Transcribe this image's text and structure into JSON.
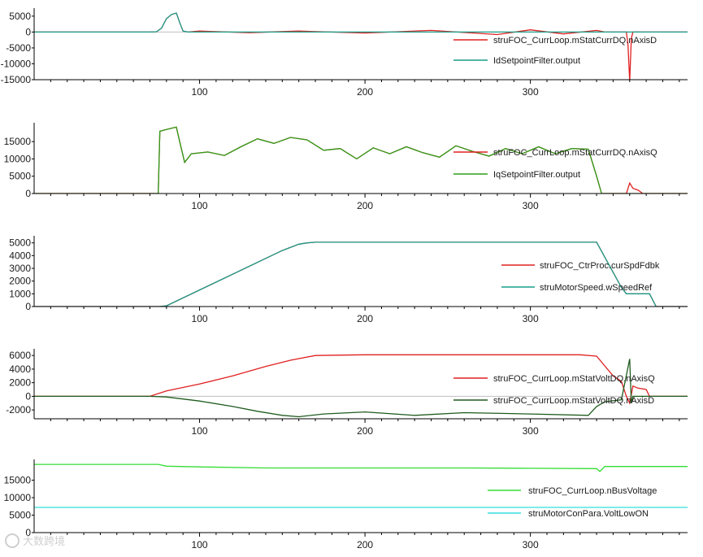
{
  "watermark": {
    "text": "大数跨境",
    "color": "#cfcfcf"
  },
  "colors": {
    "zero_line": "#bfbfbf",
    "axis": "#000000"
  },
  "chart_data": [
    {
      "type": "line",
      "x_range": [
        0,
        395
      ],
      "x_ticks": [
        100,
        200,
        300
      ],
      "ylim": [
        -15000,
        6500
      ],
      "y_ticks": [
        5000,
        0,
        -5000,
        -10000,
        -15000
      ],
      "y_tick_labels": [
        "5000",
        "0",
        "-5000",
        "-10000",
        "-15000"
      ],
      "grid": false,
      "legend_position": "right",
      "series": [
        {
          "name": "struFOC_CurrLoop.mStatCurrDQ.nAxisD",
          "color": "#e02020",
          "points": [
            [
              0,
              0
            ],
            [
              70,
              0
            ],
            [
              74,
              100
            ],
            [
              77,
              1200
            ],
            [
              80,
              4200
            ],
            [
              83,
              5500
            ],
            [
              86,
              6000
            ],
            [
              88,
              3000
            ],
            [
              90,
              300
            ],
            [
              93,
              0
            ],
            [
              100,
              300
            ],
            [
              130,
              -200
            ],
            [
              160,
              300
            ],
            [
              200,
              -300
            ],
            [
              240,
              500
            ],
            [
              280,
              -800
            ],
            [
              300,
              700
            ],
            [
              320,
              -600
            ],
            [
              340,
              500
            ],
            [
              345,
              0
            ],
            [
              358,
              0
            ],
            [
              359,
              -4000
            ],
            [
              360,
              -15500
            ],
            [
              361,
              -2000
            ],
            [
              362,
              0
            ],
            [
              395,
              0
            ]
          ]
        },
        {
          "name": "IdSetpointFilter.output",
          "color": "#1a9e8a",
          "points": [
            [
              0,
              0
            ],
            [
              70,
              0
            ],
            [
              74,
              100
            ],
            [
              77,
              1200
            ],
            [
              80,
              4200
            ],
            [
              83,
              5500
            ],
            [
              86,
              6000
            ],
            [
              88,
              3000
            ],
            [
              90,
              300
            ],
            [
              93,
              0
            ],
            [
              395,
              0
            ]
          ]
        }
      ]
    },
    {
      "type": "line",
      "x_range": [
        0,
        395
      ],
      "x_ticks": [
        100,
        200,
        300
      ],
      "ylim": [
        0,
        19500
      ],
      "y_ticks": [
        15000,
        10000,
        5000,
        0
      ],
      "y_tick_labels": [
        "15000",
        "10000",
        "5000",
        "0"
      ],
      "grid": false,
      "legend_position": "right",
      "series": [
        {
          "name": "struFOC_CurrLoop.mStatCurrDQ.nAxisQ",
          "color": "#e02020",
          "points": [
            [
              0,
              0
            ],
            [
              75,
              0
            ],
            [
              76,
              18000
            ],
            [
              80,
              18500
            ],
            [
              86,
              19200
            ],
            [
              88,
              15000
            ],
            [
              91,
              9000
            ],
            [
              95,
              11500
            ],
            [
              105,
              12000
            ],
            [
              115,
              11000
            ],
            [
              125,
              13500
            ],
            [
              135,
              15800
            ],
            [
              145,
              14500
            ],
            [
              155,
              16200
            ],
            [
              165,
              15500
            ],
            [
              175,
              12500
            ],
            [
              185,
              13000
            ],
            [
              195,
              10000
            ],
            [
              205,
              13200
            ],
            [
              215,
              11500
            ],
            [
              225,
              13500
            ],
            [
              235,
              11800
            ],
            [
              245,
              10500
            ],
            [
              255,
              13800
            ],
            [
              265,
              12200
            ],
            [
              275,
              10800
            ],
            [
              285,
              13000
            ],
            [
              295,
              11500
            ],
            [
              305,
              13500
            ],
            [
              315,
              11500
            ],
            [
              325,
              13000
            ],
            [
              335,
              12800
            ],
            [
              340,
              5000
            ],
            [
              343,
              0
            ],
            [
              358,
              0
            ],
            [
              360,
              3000
            ],
            [
              362,
              1500
            ],
            [
              365,
              1000
            ],
            [
              368,
              0
            ],
            [
              395,
              0
            ]
          ]
        },
        {
          "name": "IqSetpointFilter.output",
          "color": "#2e9e1a",
          "points": [
            [
              0,
              0
            ],
            [
              75,
              0
            ],
            [
              76,
              18000
            ],
            [
              80,
              18500
            ],
            [
              86,
              19200
            ],
            [
              88,
              15000
            ],
            [
              91,
              9000
            ],
            [
              95,
              11500
            ],
            [
              105,
              12000
            ],
            [
              115,
              11000
            ],
            [
              125,
              13500
            ],
            [
              135,
              15800
            ],
            [
              145,
              14500
            ],
            [
              155,
              16200
            ],
            [
              165,
              15500
            ],
            [
              175,
              12500
            ],
            [
              185,
              13000
            ],
            [
              195,
              10000
            ],
            [
              205,
              13200
            ],
            [
              215,
              11500
            ],
            [
              225,
              13500
            ],
            [
              235,
              11800
            ],
            [
              245,
              10500
            ],
            [
              255,
              13800
            ],
            [
              265,
              12200
            ],
            [
              275,
              10800
            ],
            [
              285,
              13000
            ],
            [
              295,
              11500
            ],
            [
              305,
              13500
            ],
            [
              315,
              11500
            ],
            [
              325,
              13000
            ],
            [
              335,
              12800
            ],
            [
              340,
              5000
            ],
            [
              343,
              0
            ],
            [
              395,
              0
            ]
          ]
        }
      ]
    },
    {
      "type": "line",
      "x_range": [
        0,
        395
      ],
      "x_ticks": [
        100,
        200,
        300
      ],
      "ylim": [
        0,
        5300
      ],
      "y_ticks": [
        5000,
        4000,
        3000,
        2000,
        1000,
        0
      ],
      "y_tick_labels": [
        "5000",
        "4000",
        "3000",
        "2000",
        "1000",
        "0"
      ],
      "grid": false,
      "legend_position": "right",
      "series": [
        {
          "name": "struFOC_CtrProc.curSpdFdbk",
          "color": "#e02020",
          "points": [
            [
              0,
              0
            ],
            [
              76,
              0
            ],
            [
              80,
              60
            ],
            [
              150,
              4400
            ],
            [
              160,
              4900
            ],
            [
              165,
              5000
            ],
            [
              170,
              5050
            ],
            [
              340,
              5050
            ],
            [
              355,
              1500
            ],
            [
              358,
              1000
            ],
            [
              372,
              1000
            ],
            [
              376,
              0
            ],
            [
              395,
              0
            ]
          ]
        },
        {
          "name": "struMotorSpeed.wSpeedRef",
          "color": "#1a9e8a",
          "points": [
            [
              0,
              0
            ],
            [
              76,
              0
            ],
            [
              80,
              60
            ],
            [
              150,
              4400
            ],
            [
              160,
              4900
            ],
            [
              165,
              5000
            ],
            [
              170,
              5050
            ],
            [
              340,
              5050
            ],
            [
              355,
              1500
            ],
            [
              358,
              1000
            ],
            [
              372,
              1000
            ],
            [
              376,
              0
            ],
            [
              395,
              0
            ]
          ]
        }
      ]
    },
    {
      "type": "line",
      "x_range": [
        0,
        395
      ],
      "x_ticks": [
        100,
        200,
        300
      ],
      "ylim": [
        -3300,
        6500
      ],
      "y_ticks": [
        6000,
        4000,
        2000,
        0,
        -2000
      ],
      "y_tick_labels": [
        "6000",
        "4000",
        "2000",
        "0",
        "-2000"
      ],
      "grid": false,
      "legend_position": "right",
      "series": [
        {
          "name": "struFOC_CurrLoop.mStatVoltDQ.nAxisQ",
          "color": "#e02020",
          "points": [
            [
              0,
              0
            ],
            [
              70,
              0
            ],
            [
              80,
              800
            ],
            [
              100,
              1800
            ],
            [
              120,
              3000
            ],
            [
              140,
              4400
            ],
            [
              155,
              5300
            ],
            [
              170,
              6000
            ],
            [
              200,
              6100
            ],
            [
              250,
              6100
            ],
            [
              300,
              6100
            ],
            [
              330,
              6100
            ],
            [
              340,
              5900
            ],
            [
              350,
              3000
            ],
            [
              355,
              2200
            ],
            [
              358,
              0
            ],
            [
              360,
              -1000
            ],
            [
              362,
              1500
            ],
            [
              365,
              1200
            ],
            [
              370,
              1000
            ],
            [
              372,
              0
            ],
            [
              395,
              0
            ]
          ]
        },
        {
          "name": "struFOC_CurrLoop.mStatVoltDQ.nAxisD",
          "color": "#1f5c1f",
          "points": [
            [
              0,
              0
            ],
            [
              70,
              0
            ],
            [
              80,
              -100
            ],
            [
              100,
              -700
            ],
            [
              120,
              -1500
            ],
            [
              135,
              -2200
            ],
            [
              150,
              -2800
            ],
            [
              160,
              -3000
            ],
            [
              175,
              -2600
            ],
            [
              200,
              -2300
            ],
            [
              230,
              -2800
            ],
            [
              260,
              -2400
            ],
            [
              300,
              -2600
            ],
            [
              335,
              -2800
            ],
            [
              340,
              -1500
            ],
            [
              345,
              -800
            ],
            [
              355,
              -500
            ],
            [
              360,
              5500
            ],
            [
              361,
              -1000
            ],
            [
              362,
              0
            ],
            [
              395,
              0
            ]
          ]
        }
      ]
    },
    {
      "type": "line",
      "x_range": [
        0,
        395
      ],
      "x_ticks": [
        100,
        200,
        300
      ],
      "ylim": [
        0,
        20000
      ],
      "y_ticks": [
        15000,
        10000,
        5000,
        0
      ],
      "y_tick_labels": [
        "15000",
        "10000",
        "5000",
        "0"
      ],
      "grid": false,
      "legend_position": "right",
      "series": [
        {
          "name": "struFOC_CurrLoop.nBusVoltage",
          "color": "#33dd33",
          "points": [
            [
              0,
              19500
            ],
            [
              75,
              19500
            ],
            [
              80,
              19000
            ],
            [
              100,
              18800
            ],
            [
              140,
              18500
            ],
            [
              200,
              18500
            ],
            [
              260,
              18500
            ],
            [
              300,
              18400
            ],
            [
              340,
              18300
            ],
            [
              342,
              17500
            ],
            [
              345,
              18900
            ],
            [
              395,
              18900
            ]
          ]
        },
        {
          "name": "struMotorConPara.VoltLowON",
          "color": "#33dddd",
          "points": [
            [
              0,
              7200
            ],
            [
              395,
              7200
            ]
          ]
        }
      ]
    }
  ]
}
